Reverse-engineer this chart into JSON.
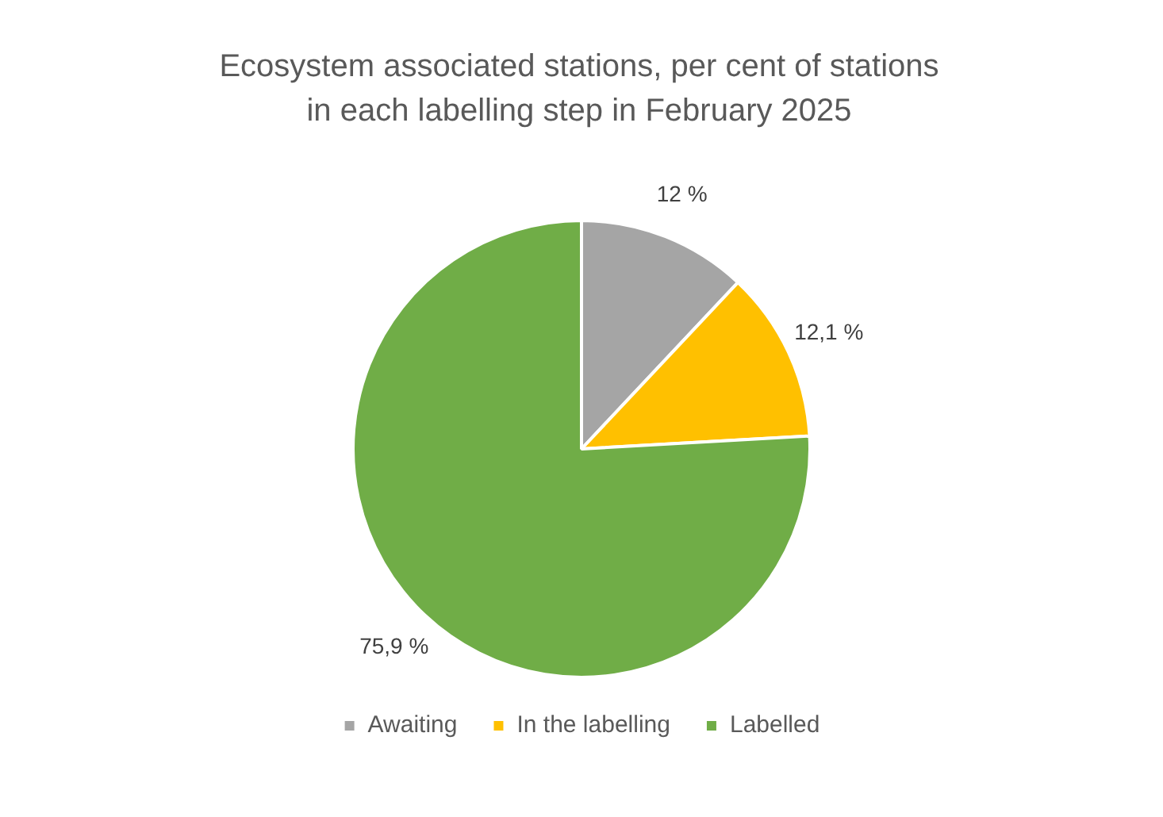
{
  "chart_data": {
    "type": "pie",
    "title": "Ecosystem associated stations, per cent of stations in each labelling step in February 2025",
    "categories": [
      "Awaiting",
      "In the labelling",
      "Labelled"
    ],
    "values": [
      12,
      12.1,
      75.9
    ],
    "colors": [
      "#a5a5a5",
      "#ffc000",
      "#70ad47"
    ],
    "value_labels": [
      "12 %",
      "12,1 %",
      "75,9 %"
    ],
    "legend": "bottom"
  }
}
